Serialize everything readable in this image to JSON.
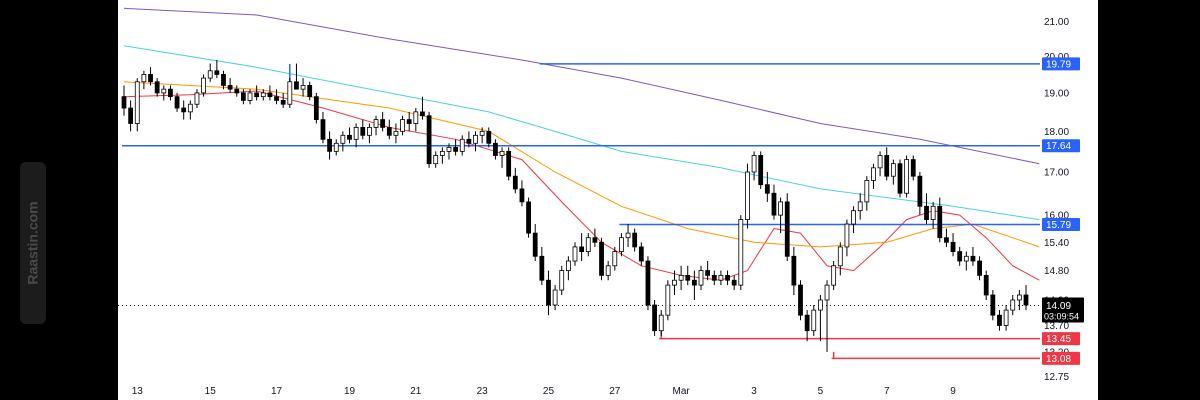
{
  "watermark": "Raastin.com",
  "chart_data": {
    "type": "candlestick",
    "ylim": [
      12.6,
      21.5
    ],
    "y_ticks": [
      "21.00",
      "20.00",
      "19.00",
      "18.00",
      "17.00",
      "16.00",
      "15.40",
      "14.80",
      "14.20",
      "13.70",
      "13.20",
      "12.75"
    ],
    "x_ticks": [
      "13",
      "15",
      "17",
      "19",
      "21",
      "23",
      "25",
      "27",
      "Mar",
      "3",
      "5",
      "7",
      "9"
    ],
    "current_price": {
      "label": "14.09",
      "countdown": "03:09:54",
      "value": 14.09
    },
    "levels": [
      {
        "label": "19.79",
        "value": 19.79,
        "color": "#2962ff"
      },
      {
        "label": "17.64",
        "value": 17.64,
        "color": "#2962ff"
      },
      {
        "label": "15.79",
        "value": 15.79,
        "color": "#2962ff"
      },
      {
        "label": "13.45",
        "value": 13.45,
        "color": "#f23645"
      },
      {
        "label": "13.08",
        "value": 13.08,
        "color": "#f23645"
      }
    ],
    "candles": [
      [
        18.9,
        19.2,
        18.4,
        18.6
      ],
      [
        18.6,
        18.8,
        18.0,
        18.2
      ],
      [
        18.2,
        19.4,
        18.0,
        19.3
      ],
      [
        19.3,
        19.6,
        19.1,
        19.5
      ],
      [
        19.5,
        19.7,
        19.2,
        19.3
      ],
      [
        19.3,
        19.4,
        18.9,
        19.0
      ],
      [
        19.0,
        19.2,
        18.8,
        19.1
      ],
      [
        19.1,
        19.2,
        18.8,
        18.9
      ],
      [
        18.9,
        19.0,
        18.5,
        18.6
      ],
      [
        18.6,
        18.8,
        18.3,
        18.5
      ],
      [
        18.5,
        18.8,
        18.3,
        18.7
      ],
      [
        18.7,
        19.1,
        18.6,
        19.0
      ],
      [
        19.0,
        19.5,
        18.9,
        19.4
      ],
      [
        19.4,
        19.8,
        19.3,
        19.6
      ],
      [
        19.6,
        19.9,
        19.4,
        19.5
      ],
      [
        19.5,
        19.6,
        19.1,
        19.2
      ],
      [
        19.2,
        19.4,
        19.0,
        19.1
      ],
      [
        19.1,
        19.2,
        18.9,
        19.0
      ],
      [
        19.0,
        19.1,
        18.7,
        18.8
      ],
      [
        18.8,
        19.1,
        18.7,
        19.0
      ],
      [
        19.0,
        19.2,
        18.8,
        18.9
      ],
      [
        18.9,
        19.1,
        18.8,
        19.0
      ],
      [
        19.0,
        19.2,
        18.8,
        18.9
      ],
      [
        18.9,
        19.1,
        18.7,
        18.8
      ],
      [
        18.8,
        19.0,
        18.6,
        18.7
      ],
      [
        18.7,
        19.4,
        18.6,
        19.3
      ],
      [
        19.3,
        19.8,
        19.1,
        19.1
      ],
      [
        19.1,
        19.4,
        18.9,
        19.2
      ],
      [
        19.2,
        19.3,
        18.8,
        18.9
      ],
      [
        18.9,
        19.0,
        18.2,
        18.3
      ],
      [
        18.3,
        18.5,
        17.7,
        17.8
      ],
      [
        17.8,
        18.0,
        17.3,
        17.5
      ],
      [
        17.5,
        17.8,
        17.4,
        17.7
      ],
      [
        17.7,
        18.0,
        17.5,
        17.9
      ],
      [
        17.9,
        18.1,
        17.7,
        17.8
      ],
      [
        17.8,
        18.2,
        17.6,
        18.1
      ],
      [
        18.1,
        18.3,
        17.8,
        17.9
      ],
      [
        17.9,
        18.2,
        17.7,
        18.1
      ],
      [
        18.1,
        18.4,
        17.9,
        18.3
      ],
      [
        18.3,
        18.5,
        18.0,
        18.1
      ],
      [
        18.1,
        18.3,
        17.8,
        17.9
      ],
      [
        17.9,
        18.2,
        17.7,
        18.0
      ],
      [
        18.0,
        18.4,
        17.9,
        18.3
      ],
      [
        18.3,
        18.5,
        18.0,
        18.2
      ],
      [
        18.2,
        18.6,
        18.0,
        18.5
      ],
      [
        18.5,
        18.9,
        18.3,
        18.4
      ],
      [
        18.4,
        18.5,
        17.1,
        17.2
      ],
      [
        17.2,
        17.5,
        17.1,
        17.4
      ],
      [
        17.4,
        17.6,
        17.2,
        17.5
      ],
      [
        17.5,
        17.7,
        17.3,
        17.6
      ],
      [
        17.6,
        17.8,
        17.4,
        17.5
      ],
      [
        17.5,
        17.9,
        17.4,
        17.8
      ],
      [
        17.8,
        18.0,
        17.6,
        17.7
      ],
      [
        17.7,
        18.0,
        17.5,
        17.9
      ],
      [
        17.9,
        18.1,
        17.7,
        18.0
      ],
      [
        18.0,
        18.1,
        17.6,
        17.7
      ],
      [
        17.7,
        17.8,
        17.3,
        17.4
      ],
      [
        17.4,
        17.6,
        17.1,
        17.5
      ],
      [
        17.5,
        17.6,
        16.8,
        16.9
      ],
      [
        16.9,
        17.1,
        16.5,
        16.6
      ],
      [
        16.6,
        16.8,
        16.2,
        16.3
      ],
      [
        16.3,
        16.4,
        15.5,
        15.6
      ],
      [
        15.6,
        15.8,
        15.0,
        15.1
      ],
      [
        15.1,
        15.3,
        14.5,
        14.6
      ],
      [
        14.6,
        14.8,
        13.9,
        14.1
      ],
      [
        14.1,
        14.5,
        14.0,
        14.4
      ],
      [
        14.4,
        14.9,
        14.3,
        14.8
      ],
      [
        14.8,
        15.1,
        14.6,
        15.0
      ],
      [
        15.0,
        15.4,
        14.9,
        15.3
      ],
      [
        15.3,
        15.6,
        15.0,
        15.2
      ],
      [
        15.2,
        15.6,
        15.1,
        15.5
      ],
      [
        15.5,
        15.7,
        15.3,
        15.4
      ],
      [
        15.4,
        15.5,
        14.6,
        14.7
      ],
      [
        14.7,
        15.0,
        14.6,
        14.9
      ],
      [
        14.9,
        15.3,
        14.8,
        15.2
      ],
      [
        15.2,
        15.6,
        15.1,
        15.5
      ],
      [
        15.5,
        15.8,
        15.3,
        15.6
      ],
      [
        15.6,
        15.7,
        15.2,
        15.3
      ],
      [
        15.3,
        15.4,
        14.9,
        15.0
      ],
      [
        15.0,
        15.1,
        14.0,
        14.1
      ],
      [
        14.1,
        14.2,
        13.5,
        13.6
      ],
      [
        13.6,
        14.0,
        13.5,
        13.9
      ],
      [
        13.9,
        14.6,
        13.8,
        14.5
      ],
      [
        14.5,
        14.8,
        14.3,
        14.6
      ],
      [
        14.6,
        14.9,
        14.4,
        14.7
      ],
      [
        14.7,
        14.9,
        14.5,
        14.6
      ],
      [
        14.6,
        14.8,
        14.2,
        14.5
      ],
      [
        14.5,
        14.9,
        14.4,
        14.8
      ],
      [
        14.8,
        15.0,
        14.6,
        14.7
      ],
      [
        14.7,
        14.8,
        14.5,
        14.6
      ],
      [
        14.6,
        14.8,
        14.5,
        14.7
      ],
      [
        14.7,
        14.8,
        14.5,
        14.6
      ],
      [
        14.6,
        14.7,
        14.4,
        14.5
      ],
      [
        14.5,
        16.0,
        14.4,
        15.9
      ],
      [
        15.9,
        17.2,
        15.7,
        17.0
      ],
      [
        17.0,
        17.5,
        16.8,
        17.4
      ],
      [
        17.4,
        17.5,
        16.6,
        16.7
      ],
      [
        16.7,
        17.0,
        16.3,
        16.5
      ],
      [
        16.5,
        16.7,
        15.9,
        16.0
      ],
      [
        16.0,
        16.4,
        15.6,
        16.3
      ],
      [
        16.3,
        16.5,
        15.0,
        15.1
      ],
      [
        15.1,
        15.3,
        14.3,
        14.5
      ],
      [
        14.5,
        14.6,
        13.8,
        13.9
      ],
      [
        13.9,
        14.0,
        13.4,
        13.6
      ],
      [
        13.6,
        14.1,
        13.5,
        14.0
      ],
      [
        14.0,
        14.3,
        13.4,
        14.2
      ],
      [
        14.2,
        14.6,
        13.2,
        14.5
      ],
      [
        14.5,
        15.0,
        14.4,
        14.9
      ],
      [
        14.9,
        15.4,
        14.7,
        15.3
      ],
      [
        15.3,
        15.9,
        15.1,
        15.8
      ],
      [
        15.8,
        16.2,
        15.6,
        16.1
      ],
      [
        16.1,
        16.5,
        15.9,
        16.3
      ],
      [
        16.3,
        16.9,
        16.1,
        16.8
      ],
      [
        16.8,
        17.2,
        16.6,
        17.1
      ],
      [
        17.1,
        17.5,
        16.9,
        17.4
      ],
      [
        17.4,
        17.6,
        16.8,
        16.9
      ],
      [
        16.9,
        17.3,
        16.7,
        17.2
      ],
      [
        17.2,
        17.3,
        16.4,
        16.5
      ],
      [
        16.5,
        17.4,
        16.4,
        17.3
      ],
      [
        17.3,
        17.4,
        16.8,
        16.9
      ],
      [
        16.9,
        17.0,
        16.0,
        16.2
      ],
      [
        16.2,
        16.5,
        15.8,
        15.9
      ],
      [
        15.9,
        16.3,
        15.7,
        16.2
      ],
      [
        16.2,
        16.4,
        15.4,
        15.5
      ],
      [
        15.5,
        15.7,
        15.3,
        15.4
      ],
      [
        15.4,
        15.6,
        15.1,
        15.2
      ],
      [
        15.2,
        15.3,
        14.9,
        15.0
      ],
      [
        15.0,
        15.2,
        14.8,
        15.1
      ],
      [
        15.1,
        15.3,
        14.9,
        15.0
      ],
      [
        15.0,
        15.1,
        14.6,
        14.7
      ],
      [
        14.7,
        14.8,
        14.2,
        14.3
      ],
      [
        14.3,
        14.4,
        13.8,
        13.9
      ],
      [
        13.9,
        14.0,
        13.6,
        13.7
      ],
      [
        13.7,
        14.1,
        13.6,
        14.0
      ],
      [
        14.0,
        14.3,
        13.9,
        14.2
      ],
      [
        14.2,
        14.4,
        14.0,
        14.3
      ],
      [
        14.3,
        14.5,
        14.0,
        14.1
      ]
    ],
    "moving_averages": [
      {
        "color": "#f23645",
        "points": [
          [
            0,
            18.9
          ],
          [
            10,
            18.95
          ],
          [
            20,
            19.05
          ],
          [
            30,
            18.6
          ],
          [
            40,
            18.1
          ],
          [
            50,
            17.8
          ],
          [
            60,
            17.3
          ],
          [
            66,
            16.3
          ],
          [
            72,
            15.4
          ],
          [
            78,
            14.9
          ],
          [
            84,
            14.7
          ],
          [
            90,
            14.6
          ],
          [
            94,
            14.8
          ],
          [
            98,
            15.7
          ],
          [
            102,
            15.6
          ],
          [
            106,
            14.9
          ],
          [
            110,
            14.8
          ],
          [
            114,
            15.3
          ],
          [
            118,
            15.9
          ],
          [
            122,
            16.1
          ],
          [
            126,
            16.0
          ],
          [
            130,
            15.5
          ],
          [
            134,
            14.9
          ],
          [
            138,
            14.6
          ]
        ]
      },
      {
        "color": "#ff9800",
        "points": [
          [
            0,
            19.3
          ],
          [
            20,
            19.1
          ],
          [
            40,
            18.6
          ],
          [
            55,
            18.0
          ],
          [
            65,
            17.0
          ],
          [
            75,
            16.2
          ],
          [
            85,
            15.7
          ],
          [
            95,
            15.4
          ],
          [
            105,
            15.3
          ],
          [
            115,
            15.4
          ],
          [
            122,
            15.7
          ],
          [
            128,
            15.8
          ],
          [
            138,
            15.3
          ]
        ]
      },
      {
        "color": "#4dd0e1",
        "points": [
          [
            0,
            20.3
          ],
          [
            20,
            19.7
          ],
          [
            40,
            19.0
          ],
          [
            55,
            18.5
          ],
          [
            65,
            18.0
          ],
          [
            75,
            17.5
          ],
          [
            90,
            17.1
          ],
          [
            105,
            16.6
          ],
          [
            115,
            16.4
          ],
          [
            125,
            16.2
          ],
          [
            138,
            15.9
          ]
        ]
      },
      {
        "color": "#7e57c2",
        "points": [
          [
            0,
            21.4
          ],
          [
            20,
            21.2
          ],
          [
            40,
            20.5
          ],
          [
            60,
            19.9
          ],
          [
            75,
            19.4
          ],
          [
            90,
            18.8
          ],
          [
            105,
            18.2
          ],
          [
            120,
            17.8
          ],
          [
            138,
            17.2
          ]
        ]
      }
    ]
  }
}
